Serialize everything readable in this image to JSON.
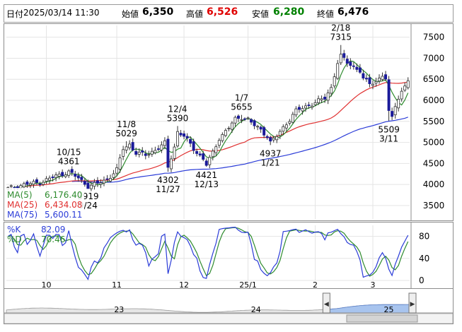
{
  "header": {
    "date_label": "日付",
    "date_value": "2025/03/14 11:30",
    "open_label": "始値",
    "open_value": "6,350",
    "high_label": "高値",
    "high_value": "6,526",
    "low_label": "安値",
    "low_value": "6,280",
    "close_label": "終値",
    "close_value": "6,476"
  },
  "colors": {
    "up": "#ffffff",
    "down": "#1a1a9a",
    "ma5": "#2e8b2e",
    "ma25": "#e03030",
    "ma75": "#2b3cd8",
    "high": "#e00000",
    "low": "#008000",
    "k": "#2b3cd8",
    "d": "#2e8b2e",
    "nav_fill": "#a8c4ee"
  },
  "legend_ma": [
    {
      "label": "MA(5)",
      "value": "6,176.40",
      "color": "#2e8b2e"
    },
    {
      "label": "MA(25)",
      "value": "6,434.08",
      "color": "#e03030"
    },
    {
      "label": "MA(75)",
      "value": "5,600.11",
      "color": "#2b3cd8"
    }
  ],
  "legend_osc": [
    {
      "label": "%K",
      "value": "82.09",
      "color": "#2b3cd8"
    },
    {
      "label": "%D",
      "value": "70.46",
      "color": "#2e8b2e"
    }
  ],
  "nav": {
    "labels": [
      "23",
      "24",
      "25"
    ]
  },
  "chart_data": {
    "type": "candlestick",
    "price_axis": {
      "ticks": [
        3500,
        4000,
        4500,
        5000,
        5500,
        6000,
        6500,
        7000,
        7500
      ],
      "range": [
        3180,
        7780
      ]
    },
    "x_axis": {
      "month_labels": [
        {
          "label": "10",
          "bar": 12
        },
        {
          "label": "11",
          "bar": 34
        },
        {
          "label": "12",
          "bar": 55
        },
        {
          "label": "25/1",
          "bar": 75
        },
        {
          "label": "2",
          "bar": 96
        },
        {
          "label": "3",
          "bar": 114
        }
      ]
    },
    "bar_count": 126,
    "annotations": [
      {
        "date": "9/24",
        "value": "3919",
        "bar": 25,
        "kind": "low"
      },
      {
        "date": "10/15",
        "value": "4361",
        "bar": 19,
        "kind": "high"
      },
      {
        "date": "11/8",
        "value": "5029",
        "bar": 37,
        "kind": "high"
      },
      {
        "date": "11/27",
        "value": "4302",
        "bar": 50,
        "kind": "low"
      },
      {
        "date": "12/4",
        "value": "5390",
        "bar": 53,
        "kind": "high"
      },
      {
        "date": "12/13",
        "value": "4421",
        "bar": 62,
        "kind": "low"
      },
      {
        "date": "1/7",
        "value": "5655",
        "bar": 73,
        "kind": "high"
      },
      {
        "date": "1/21",
        "value": "4937",
        "bar": 82,
        "kind": "low"
      },
      {
        "date": "2/18",
        "value": "7315",
        "bar": 104,
        "kind": "high"
      },
      {
        "date": "3/11",
        "value": "5509",
        "bar": 119,
        "kind": "low"
      }
    ],
    "close_keypoints": [
      [
        0,
        3900
      ],
      [
        5,
        4000
      ],
      [
        10,
        4050
      ],
      [
        15,
        4200
      ],
      [
        19,
        4300
      ],
      [
        22,
        4150
      ],
      [
        25,
        3960
      ],
      [
        28,
        4020
      ],
      [
        31,
        4120
      ],
      [
        34,
        4350
      ],
      [
        36,
        4850
      ],
      [
        38,
        4950
      ],
      [
        40,
        4750
      ],
      [
        43,
        4700
      ],
      [
        46,
        4820
      ],
      [
        49,
        4980
      ],
      [
        50,
        4400
      ],
      [
        52,
        4900
      ],
      [
        53,
        5250
      ],
      [
        55,
        5150
      ],
      [
        58,
        4850
      ],
      [
        61,
        4600
      ],
      [
        62,
        4470
      ],
      [
        64,
        4750
      ],
      [
        66,
        5100
      ],
      [
        69,
        5350
      ],
      [
        71,
        5550
      ],
      [
        73,
        5600
      ],
      [
        75,
        5550
      ],
      [
        77,
        5400
      ],
      [
        79,
        5300
      ],
      [
        81,
        5150
      ],
      [
        82,
        5000
      ],
      [
        84,
        5150
      ],
      [
        87,
        5450
      ],
      [
        90,
        5750
      ],
      [
        93,
        5850
      ],
      [
        96,
        5950
      ],
      [
        99,
        6050
      ],
      [
        101,
        6300
      ],
      [
        103,
        6900
      ],
      [
        104,
        7050
      ],
      [
        106,
        6900
      ],
      [
        108,
        6800
      ],
      [
        110,
        6700
      ],
      [
        111,
        6500
      ],
      [
        113,
        6400
      ],
      [
        115,
        6450
      ],
      [
        117,
        6600
      ],
      [
        118,
        6500
      ],
      [
        119,
        5700
      ],
      [
        120,
        5600
      ],
      [
        121,
        5900
      ],
      [
        123,
        6200
      ],
      [
        124,
        6350
      ],
      [
        125,
        6476
      ]
    ],
    "ma5_last": 6176.4,
    "ma25_last": 6434.08,
    "ma75_last": 5600.11,
    "stoch_k_last": 82.09,
    "stoch_d_last": 70.46,
    "osc_ticks": [
      0,
      40,
      80
    ]
  }
}
